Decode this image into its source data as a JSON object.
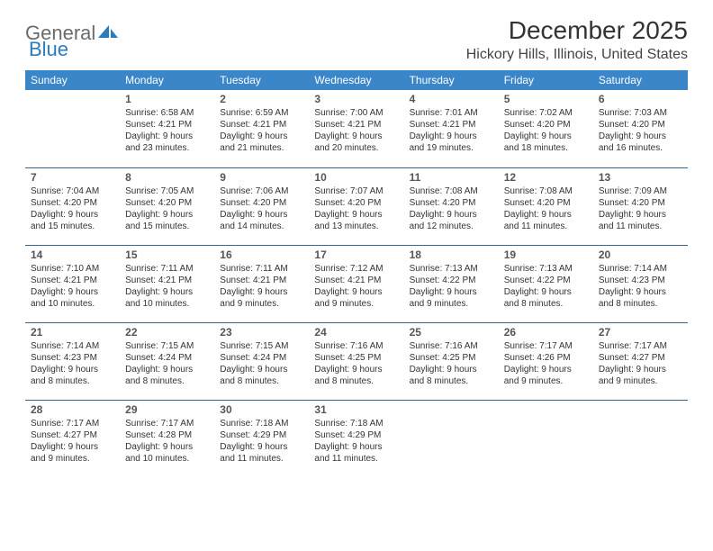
{
  "brand": {
    "part1": "General",
    "part2": "Blue"
  },
  "title": "December 2025",
  "location": "Hickory Hills, Illinois, United States",
  "dayHeaders": [
    "Sunday",
    "Monday",
    "Tuesday",
    "Wednesday",
    "Thursday",
    "Friday",
    "Saturday"
  ],
  "colors": {
    "header_bg": "#3a86c8",
    "header_text": "#ffffff",
    "rule": "#336699",
    "logo_gray": "#6b6b6b",
    "logo_blue": "#2b7bbf"
  },
  "weeks": [
    [
      null,
      {
        "n": "1",
        "sr": "Sunrise: 6:58 AM",
        "ss": "Sunset: 4:21 PM",
        "d1": "Daylight: 9 hours",
        "d2": "and 23 minutes."
      },
      {
        "n": "2",
        "sr": "Sunrise: 6:59 AM",
        "ss": "Sunset: 4:21 PM",
        "d1": "Daylight: 9 hours",
        "d2": "and 21 minutes."
      },
      {
        "n": "3",
        "sr": "Sunrise: 7:00 AM",
        "ss": "Sunset: 4:21 PM",
        "d1": "Daylight: 9 hours",
        "d2": "and 20 minutes."
      },
      {
        "n": "4",
        "sr": "Sunrise: 7:01 AM",
        "ss": "Sunset: 4:21 PM",
        "d1": "Daylight: 9 hours",
        "d2": "and 19 minutes."
      },
      {
        "n": "5",
        "sr": "Sunrise: 7:02 AM",
        "ss": "Sunset: 4:20 PM",
        "d1": "Daylight: 9 hours",
        "d2": "and 18 minutes."
      },
      {
        "n": "6",
        "sr": "Sunrise: 7:03 AM",
        "ss": "Sunset: 4:20 PM",
        "d1": "Daylight: 9 hours",
        "d2": "and 16 minutes."
      }
    ],
    [
      {
        "n": "7",
        "sr": "Sunrise: 7:04 AM",
        "ss": "Sunset: 4:20 PM",
        "d1": "Daylight: 9 hours",
        "d2": "and 15 minutes."
      },
      {
        "n": "8",
        "sr": "Sunrise: 7:05 AM",
        "ss": "Sunset: 4:20 PM",
        "d1": "Daylight: 9 hours",
        "d2": "and 15 minutes."
      },
      {
        "n": "9",
        "sr": "Sunrise: 7:06 AM",
        "ss": "Sunset: 4:20 PM",
        "d1": "Daylight: 9 hours",
        "d2": "and 14 minutes."
      },
      {
        "n": "10",
        "sr": "Sunrise: 7:07 AM",
        "ss": "Sunset: 4:20 PM",
        "d1": "Daylight: 9 hours",
        "d2": "and 13 minutes."
      },
      {
        "n": "11",
        "sr": "Sunrise: 7:08 AM",
        "ss": "Sunset: 4:20 PM",
        "d1": "Daylight: 9 hours",
        "d2": "and 12 minutes."
      },
      {
        "n": "12",
        "sr": "Sunrise: 7:08 AM",
        "ss": "Sunset: 4:20 PM",
        "d1": "Daylight: 9 hours",
        "d2": "and 11 minutes."
      },
      {
        "n": "13",
        "sr": "Sunrise: 7:09 AM",
        "ss": "Sunset: 4:20 PM",
        "d1": "Daylight: 9 hours",
        "d2": "and 11 minutes."
      }
    ],
    [
      {
        "n": "14",
        "sr": "Sunrise: 7:10 AM",
        "ss": "Sunset: 4:21 PM",
        "d1": "Daylight: 9 hours",
        "d2": "and 10 minutes."
      },
      {
        "n": "15",
        "sr": "Sunrise: 7:11 AM",
        "ss": "Sunset: 4:21 PM",
        "d1": "Daylight: 9 hours",
        "d2": "and 10 minutes."
      },
      {
        "n": "16",
        "sr": "Sunrise: 7:11 AM",
        "ss": "Sunset: 4:21 PM",
        "d1": "Daylight: 9 hours",
        "d2": "and 9 minutes."
      },
      {
        "n": "17",
        "sr": "Sunrise: 7:12 AM",
        "ss": "Sunset: 4:21 PM",
        "d1": "Daylight: 9 hours",
        "d2": "and 9 minutes."
      },
      {
        "n": "18",
        "sr": "Sunrise: 7:13 AM",
        "ss": "Sunset: 4:22 PM",
        "d1": "Daylight: 9 hours",
        "d2": "and 9 minutes."
      },
      {
        "n": "19",
        "sr": "Sunrise: 7:13 AM",
        "ss": "Sunset: 4:22 PM",
        "d1": "Daylight: 9 hours",
        "d2": "and 8 minutes."
      },
      {
        "n": "20",
        "sr": "Sunrise: 7:14 AM",
        "ss": "Sunset: 4:23 PM",
        "d1": "Daylight: 9 hours",
        "d2": "and 8 minutes."
      }
    ],
    [
      {
        "n": "21",
        "sr": "Sunrise: 7:14 AM",
        "ss": "Sunset: 4:23 PM",
        "d1": "Daylight: 9 hours",
        "d2": "and 8 minutes."
      },
      {
        "n": "22",
        "sr": "Sunrise: 7:15 AM",
        "ss": "Sunset: 4:24 PM",
        "d1": "Daylight: 9 hours",
        "d2": "and 8 minutes."
      },
      {
        "n": "23",
        "sr": "Sunrise: 7:15 AM",
        "ss": "Sunset: 4:24 PM",
        "d1": "Daylight: 9 hours",
        "d2": "and 8 minutes."
      },
      {
        "n": "24",
        "sr": "Sunrise: 7:16 AM",
        "ss": "Sunset: 4:25 PM",
        "d1": "Daylight: 9 hours",
        "d2": "and 8 minutes."
      },
      {
        "n": "25",
        "sr": "Sunrise: 7:16 AM",
        "ss": "Sunset: 4:25 PM",
        "d1": "Daylight: 9 hours",
        "d2": "and 8 minutes."
      },
      {
        "n": "26",
        "sr": "Sunrise: 7:17 AM",
        "ss": "Sunset: 4:26 PM",
        "d1": "Daylight: 9 hours",
        "d2": "and 9 minutes."
      },
      {
        "n": "27",
        "sr": "Sunrise: 7:17 AM",
        "ss": "Sunset: 4:27 PM",
        "d1": "Daylight: 9 hours",
        "d2": "and 9 minutes."
      }
    ],
    [
      {
        "n": "28",
        "sr": "Sunrise: 7:17 AM",
        "ss": "Sunset: 4:27 PM",
        "d1": "Daylight: 9 hours",
        "d2": "and 9 minutes."
      },
      {
        "n": "29",
        "sr": "Sunrise: 7:17 AM",
        "ss": "Sunset: 4:28 PM",
        "d1": "Daylight: 9 hours",
        "d2": "and 10 minutes."
      },
      {
        "n": "30",
        "sr": "Sunrise: 7:18 AM",
        "ss": "Sunset: 4:29 PM",
        "d1": "Daylight: 9 hours",
        "d2": "and 11 minutes."
      },
      {
        "n": "31",
        "sr": "Sunrise: 7:18 AM",
        "ss": "Sunset: 4:29 PM",
        "d1": "Daylight: 9 hours",
        "d2": "and 11 minutes."
      },
      null,
      null,
      null
    ]
  ]
}
